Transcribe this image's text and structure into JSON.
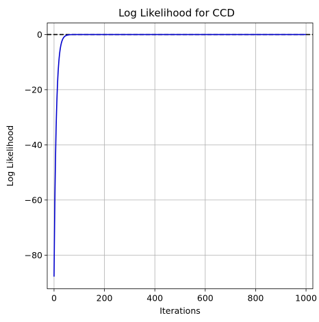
{
  "chart_data": {
    "type": "line",
    "title": "Log Likelihood for CCD",
    "xlabel": "Iterations",
    "ylabel": "Log Likelihood",
    "xlim": [
      -27,
      1027
    ],
    "ylim": [
      -92.2,
      4.2
    ],
    "grid": true,
    "x_ticks": [
      0,
      200,
      400,
      600,
      800,
      1000
    ],
    "y_ticks": [
      0,
      -20,
      -40,
      -60,
      -80
    ],
    "x_tick_labels": [
      "0",
      "200",
      "400",
      "600",
      "800",
      "1000"
    ],
    "y_tick_labels": [
      "0",
      "−20",
      "−40",
      "−60",
      "−80"
    ],
    "series": [
      {
        "color": "#0000cc",
        "style": "solid",
        "function": "exponential-approach",
        "start": -87.8,
        "end": 0,
        "rate": 0.115,
        "x_start": 0,
        "x_end": 1000
      }
    ],
    "reference_lines": [
      {
        "orientation": "horizontal",
        "y": 0,
        "color": "#000000",
        "style": "dashed"
      }
    ]
  }
}
